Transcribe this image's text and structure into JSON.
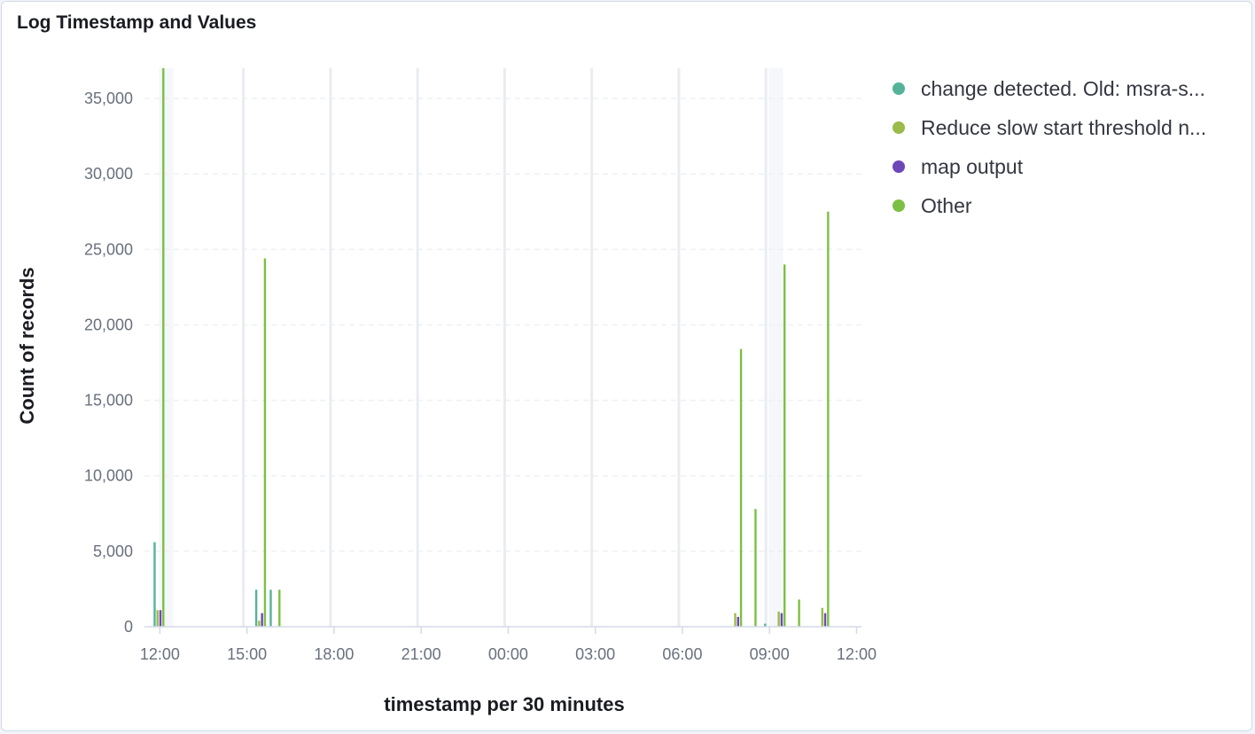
{
  "panel": {
    "title": "Log Timestamp and Values"
  },
  "chart_data": {
    "type": "bar",
    "title": "Log Timestamp and Values",
    "xlabel": "timestamp per 30 minutes",
    "ylabel": "Count of records",
    "ylim": [
      0,
      37000
    ],
    "yticks": [
      0,
      5000,
      10000,
      15000,
      20000,
      25000,
      30000,
      35000
    ],
    "ytick_labels": [
      "0",
      "5,000",
      "10,000",
      "15,000",
      "20,000",
      "25,000",
      "30,000",
      "35,000"
    ],
    "x_unit": "hours since first 12:00",
    "xlim": [
      -0.5,
      24.2
    ],
    "xticks": [
      0,
      3,
      6,
      9,
      12,
      15,
      18,
      21,
      24
    ],
    "xtick_labels": [
      "12:00",
      "15:00",
      "18:00",
      "21:00",
      "00:00",
      "03:00",
      "06:00",
      "09:00",
      "12:00"
    ],
    "grid": true,
    "legend_position": "right",
    "bar_width_hours": 0.5,
    "highlight_x": [
      0,
      21
    ],
    "series": [
      {
        "name": "change detected. Old: msra-s...",
        "color": "#54b399",
        "points": [
          [
            -0.15,
            5600
          ],
          [
            3.35,
            2450
          ],
          [
            3.85,
            2450
          ],
          [
            20.88,
            200
          ]
        ]
      },
      {
        "name": "Reduce slow start threshold n...",
        "color": "#9bbb4b",
        "points": [
          [
            -0.05,
            1100
          ],
          [
            3.45,
            400
          ],
          [
            19.85,
            900
          ],
          [
            21.35,
            1000
          ],
          [
            22.85,
            1250
          ]
        ]
      },
      {
        "name": "map output",
        "color": "#6f46b8",
        "points": [
          [
            0.05,
            1100
          ],
          [
            3.55,
            900
          ],
          [
            19.95,
            650
          ],
          [
            21.45,
            900
          ],
          [
            22.95,
            900
          ]
        ]
      },
      {
        "name": "Other",
        "color": "#7bc043",
        "points": [
          [
            0.15,
            37000
          ],
          [
            3.65,
            24400
          ],
          [
            4.15,
            2450
          ],
          [
            20.05,
            18400
          ],
          [
            20.55,
            7800
          ],
          [
            21.55,
            24000
          ],
          [
            22.05,
            1800
          ],
          [
            23.05,
            27500
          ]
        ]
      }
    ]
  }
}
